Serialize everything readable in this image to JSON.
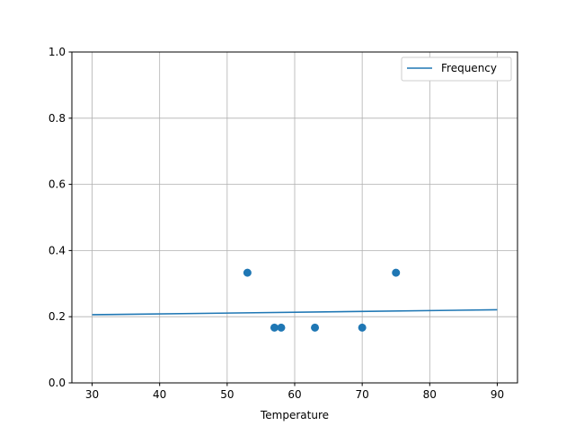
{
  "chart_data": {
    "type": "scatter",
    "title": "",
    "xlabel": "Temperature",
    "ylabel": "",
    "xlim": [
      27,
      93
    ],
    "ylim": [
      0,
      1.0
    ],
    "grid": true,
    "legend_position": "top-right",
    "xticks": [
      "30",
      "40",
      "50",
      "60",
      "70",
      "80",
      "90"
    ],
    "yticks": [
      "0.0",
      "0.2",
      "0.4",
      "0.6",
      "0.8",
      "1.0"
    ],
    "series": [
      {
        "name": "Frequency",
        "kind": "line",
        "color": "#1f77b4",
        "x": [
          30,
          90
        ],
        "y": [
          0.206,
          0.221
        ]
      },
      {
        "kind": "scatter",
        "color": "#1f77b4",
        "x": [
          53,
          57,
          58,
          63,
          70,
          75
        ],
        "y": [
          0.333,
          0.167,
          0.167,
          0.167,
          0.167,
          0.333
        ]
      }
    ]
  }
}
